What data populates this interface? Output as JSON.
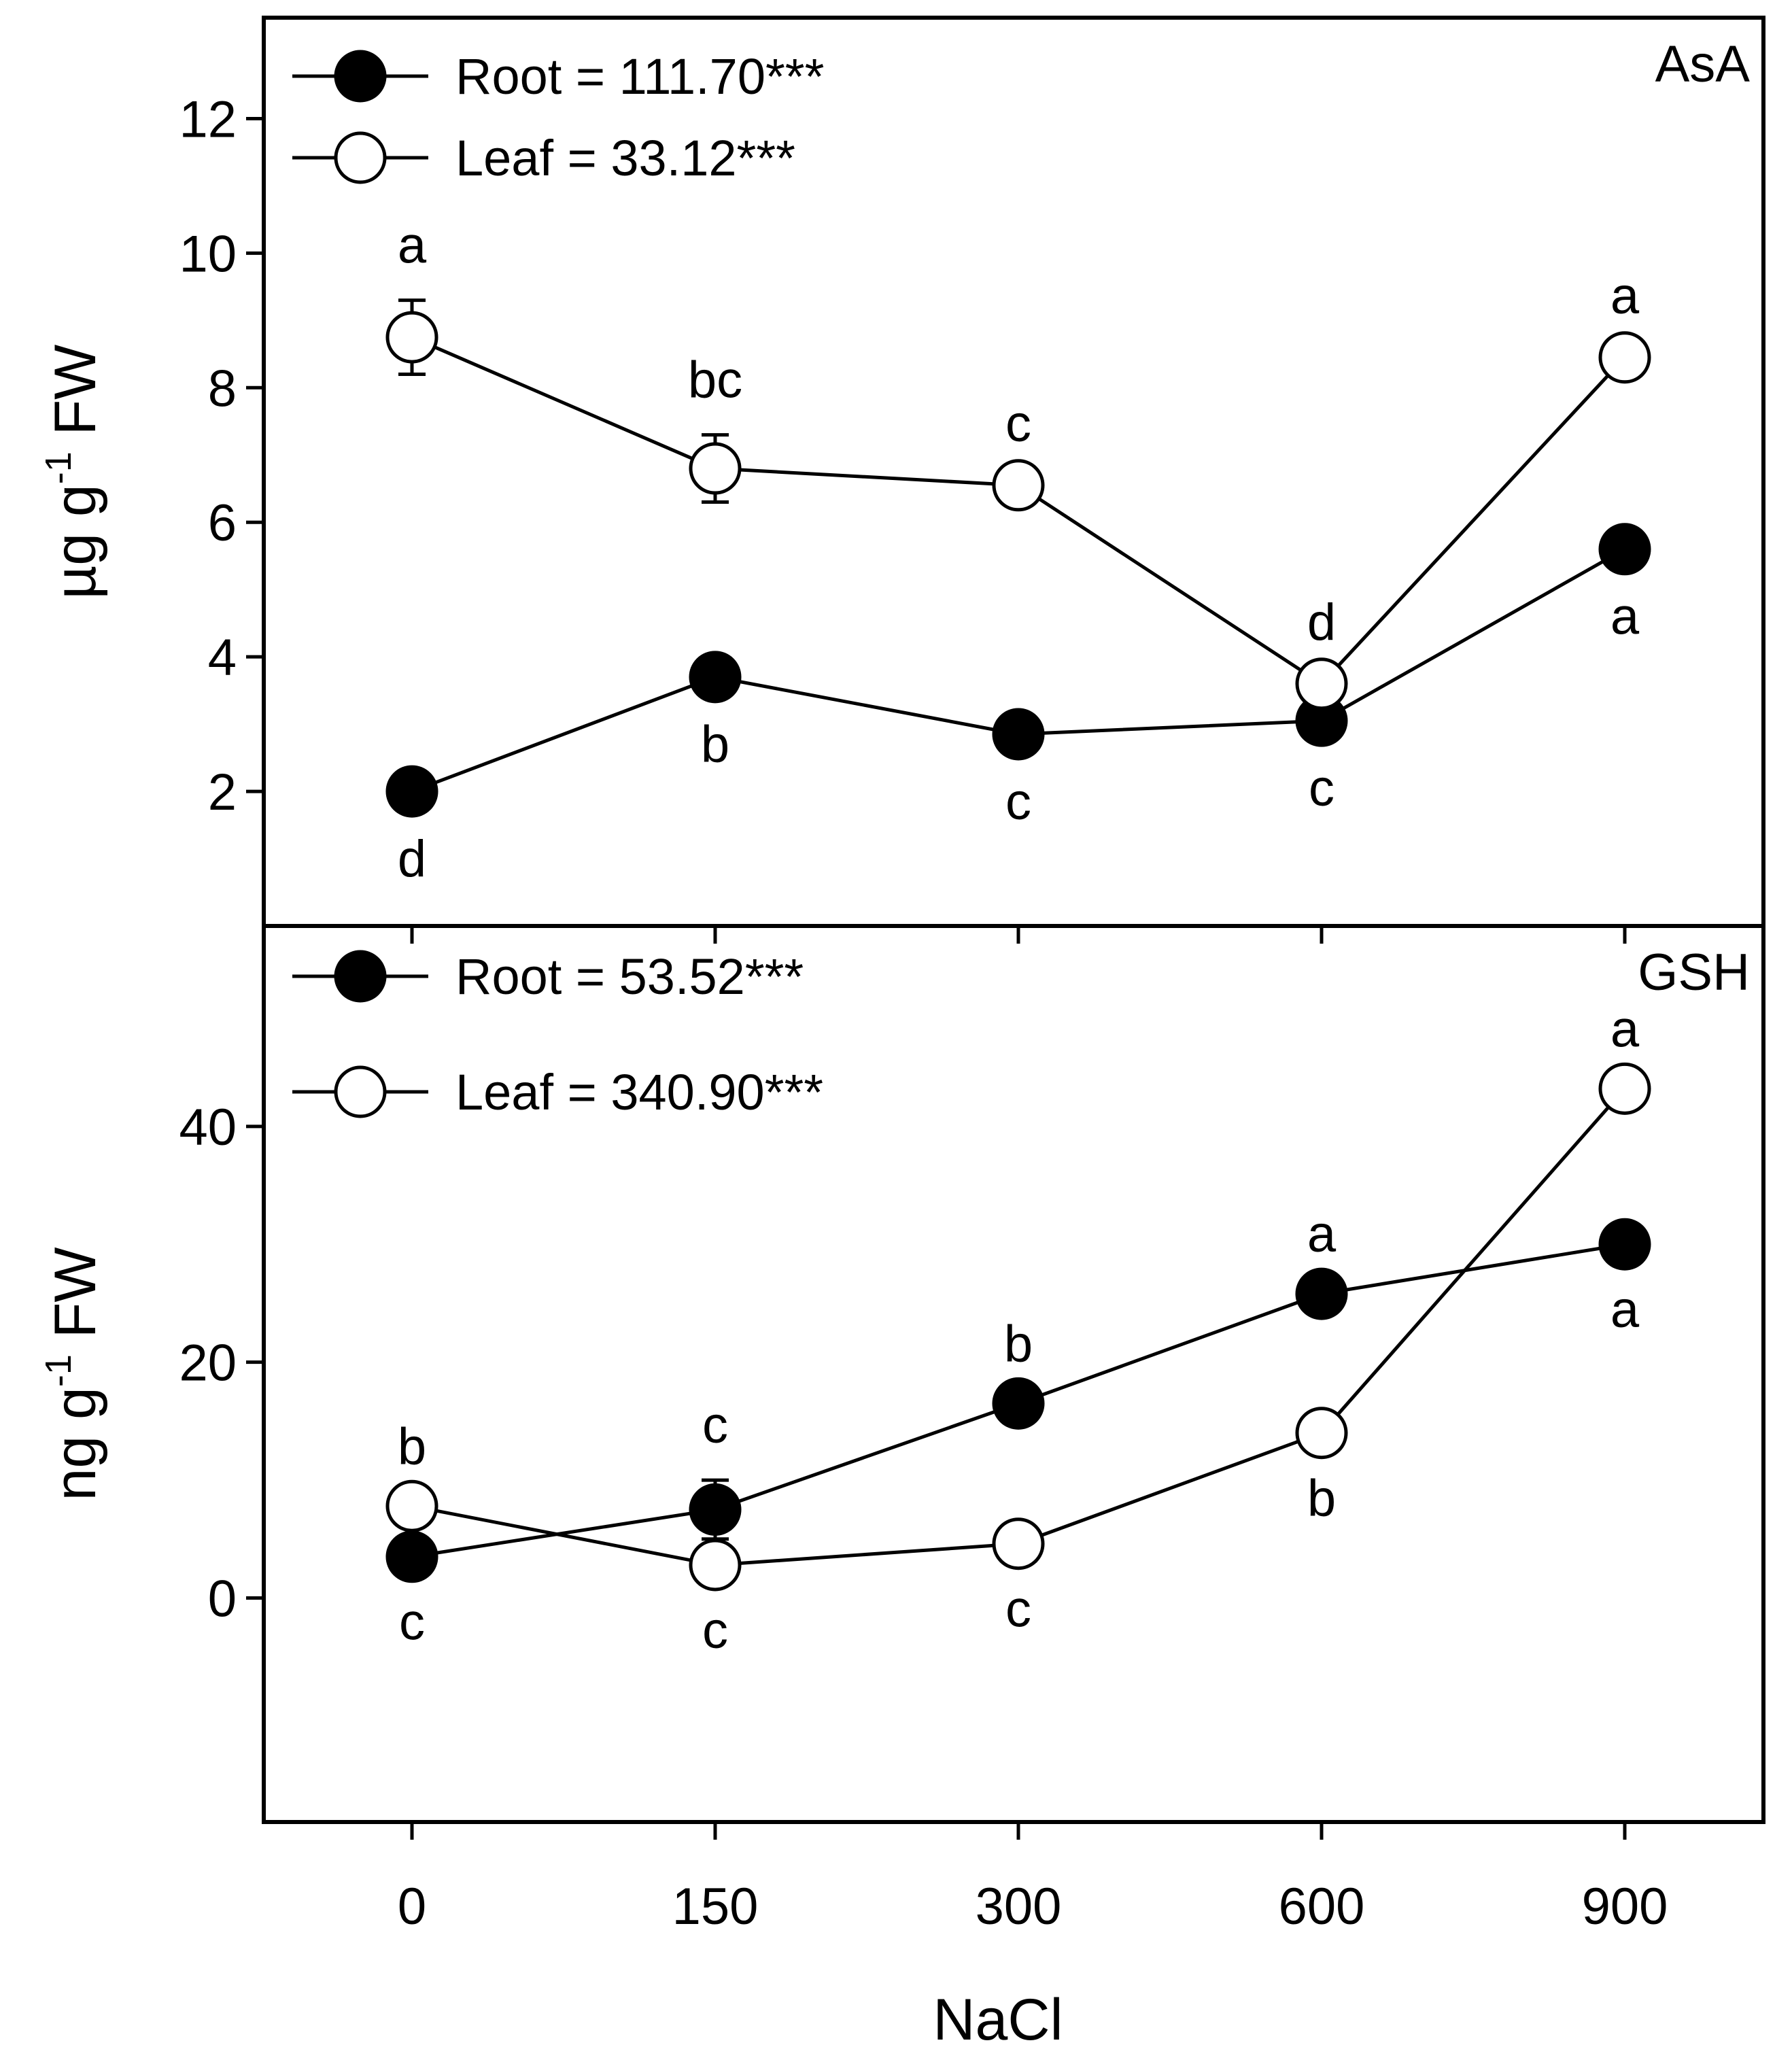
{
  "chart_data": [
    {
      "type": "line",
      "panel_label": "AsA",
      "ylabel_main": "µg g",
      "ylabel_sup": "-1",
      "ylabel_end": " FW",
      "xlabel": "",
      "categories": [
        "0",
        "150",
        "300",
        "600",
        "900"
      ],
      "ylim": [
        0,
        13.5
      ],
      "yticks": [
        2,
        4,
        6,
        8,
        10,
        12
      ],
      "legend_position": "top-left",
      "series": [
        {
          "name": "Root = 111.70***",
          "marker": "filled",
          "values": [
            2.0,
            3.7,
            2.85,
            3.05,
            5.6
          ],
          "errors": [
            0.1,
            0.1,
            0.1,
            0.1,
            0.1
          ],
          "letters": [
            "d",
            "b",
            "c",
            "c",
            "a"
          ],
          "letter_side": [
            "below",
            "below",
            "below",
            "below",
            "below"
          ]
        },
        {
          "name": "Leaf = 33.12***",
          "marker": "open",
          "values": [
            8.75,
            6.8,
            6.55,
            3.6,
            8.45
          ],
          "errors": [
            0.55,
            0.5,
            0.1,
            0.1,
            0.1
          ],
          "letters": [
            "a",
            "bc",
            "c",
            "d",
            "a"
          ],
          "letter_side": [
            "above",
            "above",
            "above",
            "above",
            "above"
          ]
        }
      ]
    },
    {
      "type": "line",
      "panel_label": "GSH",
      "ylabel_main": "ng g",
      "ylabel_sup": "-1",
      "ylabel_end": " FW",
      "xlabel": "NaCl",
      "categories": [
        "0",
        "150",
        "300",
        "600",
        "900"
      ],
      "ylim": [
        -19,
        57
      ],
      "yticks": [
        0,
        20,
        40
      ],
      "legend_position": "top-left",
      "series": [
        {
          "name": "Root = 53.52***",
          "marker": "filled",
          "values": [
            3.5,
            7.5,
            16.5,
            25.8,
            30.0
          ],
          "errors": [
            0.4,
            2.5,
            0.4,
            0.4,
            0.4
          ],
          "letters": [
            "c",
            "c",
            "b",
            "a",
            "a"
          ],
          "letter_side": [
            "below",
            "above",
            "above",
            "above",
            "below"
          ]
        },
        {
          "name": "Leaf = 340.90***",
          "marker": "open",
          "values": [
            7.8,
            2.8,
            4.6,
            14.0,
            43.2
          ],
          "errors": [
            0.4,
            0.4,
            0.4,
            0.4,
            0.4
          ],
          "letters": [
            "b",
            "c",
            "c",
            "b",
            "a"
          ],
          "letter_side": [
            "above",
            "below",
            "below",
            "below",
            "above"
          ]
        }
      ]
    }
  ]
}
